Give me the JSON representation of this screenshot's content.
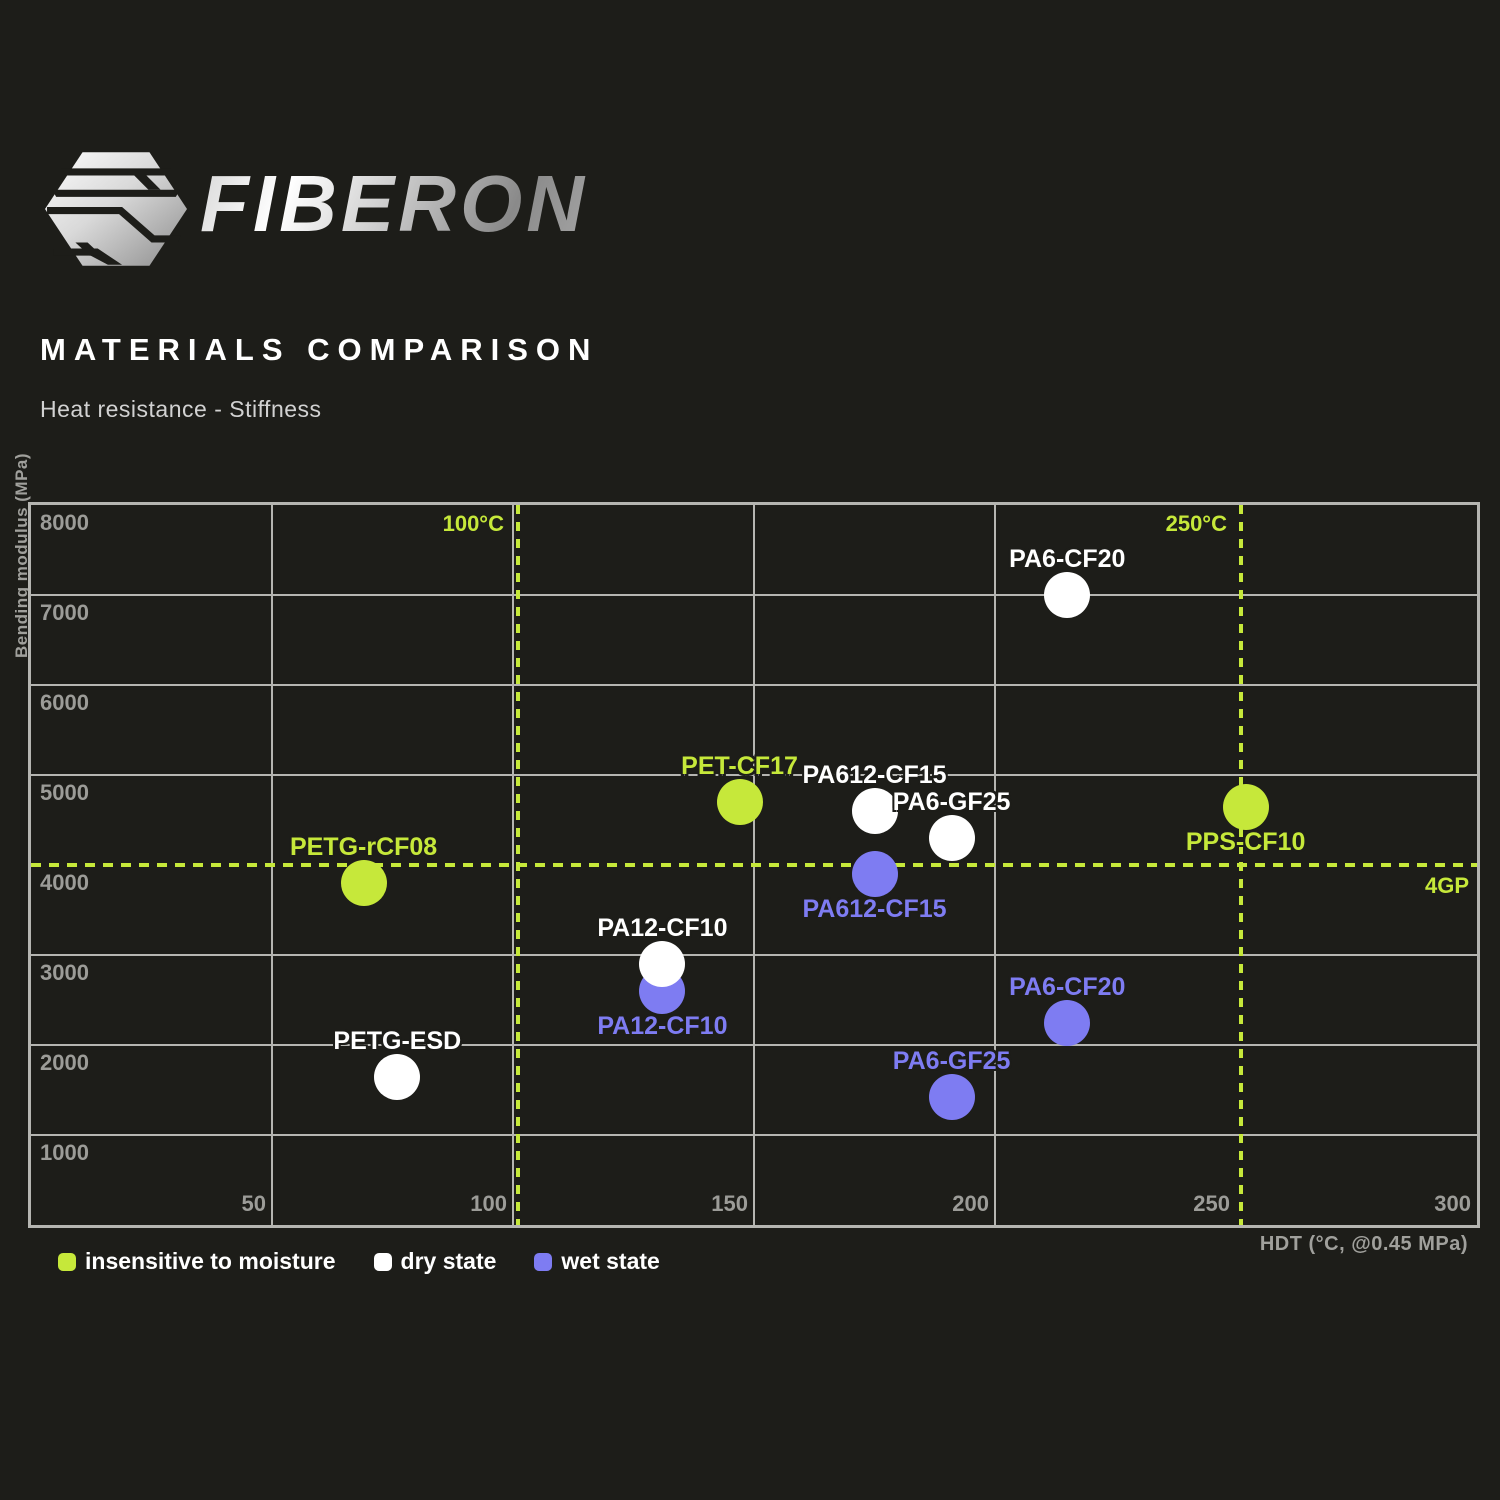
{
  "header": {
    "brand": "FIBERON",
    "title": "MATERIALS COMPARISON",
    "subtitle": "Heat resistance - Stiffness"
  },
  "colors": {
    "background": "#1d1d19",
    "grid": "#b5b5b1",
    "accent_yellow": "#c6e83a",
    "dry_white": "#ffffff",
    "wet_purple": "#7e7cf2"
  },
  "chart_data": {
    "type": "scatter",
    "title": "Heat resistance - Stiffness",
    "xlabel": "HDT (°C, @0.45 MPa)",
    "ylabel": "Bending modulus (MPa)",
    "xlim": [
      0,
      300
    ],
    "ylim": [
      0,
      8000
    ],
    "x_ticks": [
      50,
      100,
      150,
      200,
      250,
      300
    ],
    "y_ticks": [
      1000,
      2000,
      3000,
      4000,
      5000,
      6000,
      7000,
      8000
    ],
    "grid": true,
    "legend_position": "bottom-left",
    "reference_lines": [
      {
        "axis": "x",
        "value": 100,
        "label": "100°C",
        "style": "dashed",
        "color": "#c6e83a"
      },
      {
        "axis": "x",
        "value": 250,
        "label": "250°C",
        "style": "dashed",
        "color": "#c6e83a"
      },
      {
        "axis": "y",
        "value": 4000,
        "label": "4GP",
        "style": "dashed",
        "color": "#c6e83a"
      }
    ],
    "series": [
      {
        "name": "insensitive to moisture",
        "color": "#c6e83a",
        "points": [
          {
            "material": "PETG-rCF08",
            "x": 69,
            "y": 3800,
            "label_position": "above"
          },
          {
            "material": "PET-CF17",
            "x": 147,
            "y": 4700,
            "label_position": "above"
          },
          {
            "material": "PPS-CF10",
            "x": 252,
            "y": 4650,
            "label_position": "below"
          }
        ]
      },
      {
        "name": "wet state",
        "color": "#7e7cf2",
        "points": [
          {
            "material": "PA612-CF15",
            "x": 175,
            "y": 3900,
            "label_position": "below"
          },
          {
            "material": "PA12-CF10",
            "x": 131,
            "y": 2600,
            "label_position": "below"
          },
          {
            "material": "PA6-CF20",
            "x": 215,
            "y": 2250,
            "label_position": "above"
          },
          {
            "material": "PA6-GF25",
            "x": 191,
            "y": 1420,
            "label_position": "above"
          }
        ]
      },
      {
        "name": "dry state",
        "color": "#ffffff",
        "points": [
          {
            "material": "PA6-CF20",
            "x": 215,
            "y": 7000,
            "label_position": "above"
          },
          {
            "material": "PA612-CF15",
            "x": 175,
            "y": 4600,
            "label_position": "above"
          },
          {
            "material": "PA6-GF25",
            "x": 191,
            "y": 4300,
            "label_position": "above"
          },
          {
            "material": "PA12-CF10",
            "x": 131,
            "y": 2900,
            "label_position": "above"
          },
          {
            "material": "PETG-ESD",
            "x": 76,
            "y": 1650,
            "label_position": "above"
          }
        ]
      }
    ],
    "legend_order": [
      "insensitive to moisture",
      "dry state",
      "wet state"
    ]
  }
}
